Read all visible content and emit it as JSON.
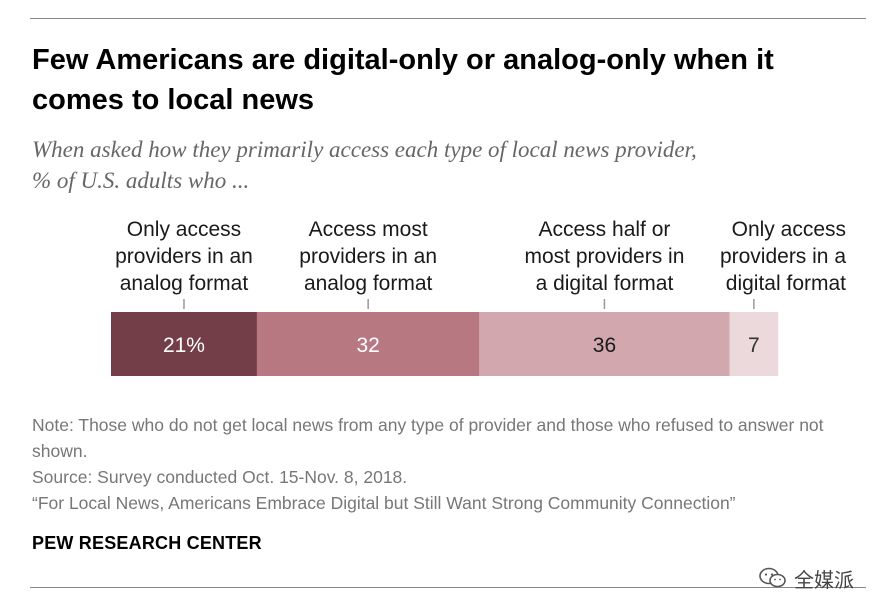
{
  "title": "Few Americans are digital-only or analog-only when it comes to local news",
  "subtitle_line1": "When asked how they primarily access each type of local news provider,",
  "subtitle_line2": "% of U.S. adults who ...",
  "colors": {
    "accent_darkest": "#733e47",
    "accent_dark": "#b77882",
    "accent_light": "#d3a7ae",
    "accent_lightest": "#ecd9dc"
  },
  "chart_data": {
    "type": "bar",
    "orientation": "horizontal-stacked",
    "categories": [
      "Only access providers in an analog format",
      "Access most providers in an analog format",
      "Access half or most providers in a digital format",
      "Only access providers in a digital format"
    ],
    "category_lines": [
      [
        "Only access",
        "providers in an",
        "analog format"
      ],
      [
        "Access most",
        "providers in an",
        "analog format"
      ],
      [
        "Access half or",
        "most providers in",
        "a digital format"
      ],
      [
        "Only access",
        "providers in a",
        "digital format"
      ]
    ],
    "values": [
      21,
      32,
      36,
      7
    ],
    "value_labels": [
      "21%",
      "32",
      "36",
      "7"
    ],
    "colors": [
      "#733e47",
      "#b77882",
      "#d3a7ae",
      "#ecd9dc"
    ],
    "label_colors": [
      "#ffffff",
      "#ffffff",
      "#1a1a1a",
      "#333333"
    ]
  },
  "note": "Note: Those who do not get local news from any type of provider and those who refused to answer not shown.",
  "source": "Source: Survey conducted Oct. 15-Nov. 8, 2018.",
  "report": "“For Local News, Americans Embrace Digital but Still Want Strong Community Connection”",
  "org": "PEW RESEARCH CENTER",
  "watermark_text": "全媒派",
  "watermark_icon": "wechat-icon"
}
